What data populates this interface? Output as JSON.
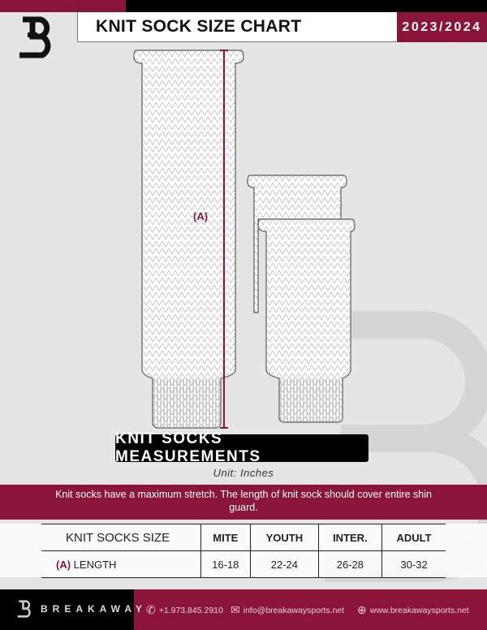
{
  "header": {
    "title": "KNIT SOCK SIZE CHART",
    "season": "2023/2024"
  },
  "diagram": {
    "measure_label": "(A)"
  },
  "measurements_label": "KNIT SOCKS MEASUREMENTS",
  "unit": "Unit: Inches",
  "note": "Knit socks have a maximum stretch. The length of knit sock should cover entire shin guard.",
  "table": {
    "headers": [
      "KNIT SOCKS SIZE",
      "MITE",
      "YOUTH",
      "INTER.",
      "ADULT"
    ],
    "rows": [
      {
        "marker": "(A)",
        "label": "LENGTH",
        "values": [
          "16-18",
          "22-24",
          "26-28",
          "30-32"
        ]
      }
    ]
  },
  "footer": {
    "brand": "BREAKAWAY",
    "phone": "+1.973.845.2910",
    "email": "info@breakawaysports.net",
    "website": "www.breakawaysports.net"
  },
  "colors": {
    "accent": "#8a1538",
    "black": "#000000",
    "background": "#e4e5e4"
  }
}
